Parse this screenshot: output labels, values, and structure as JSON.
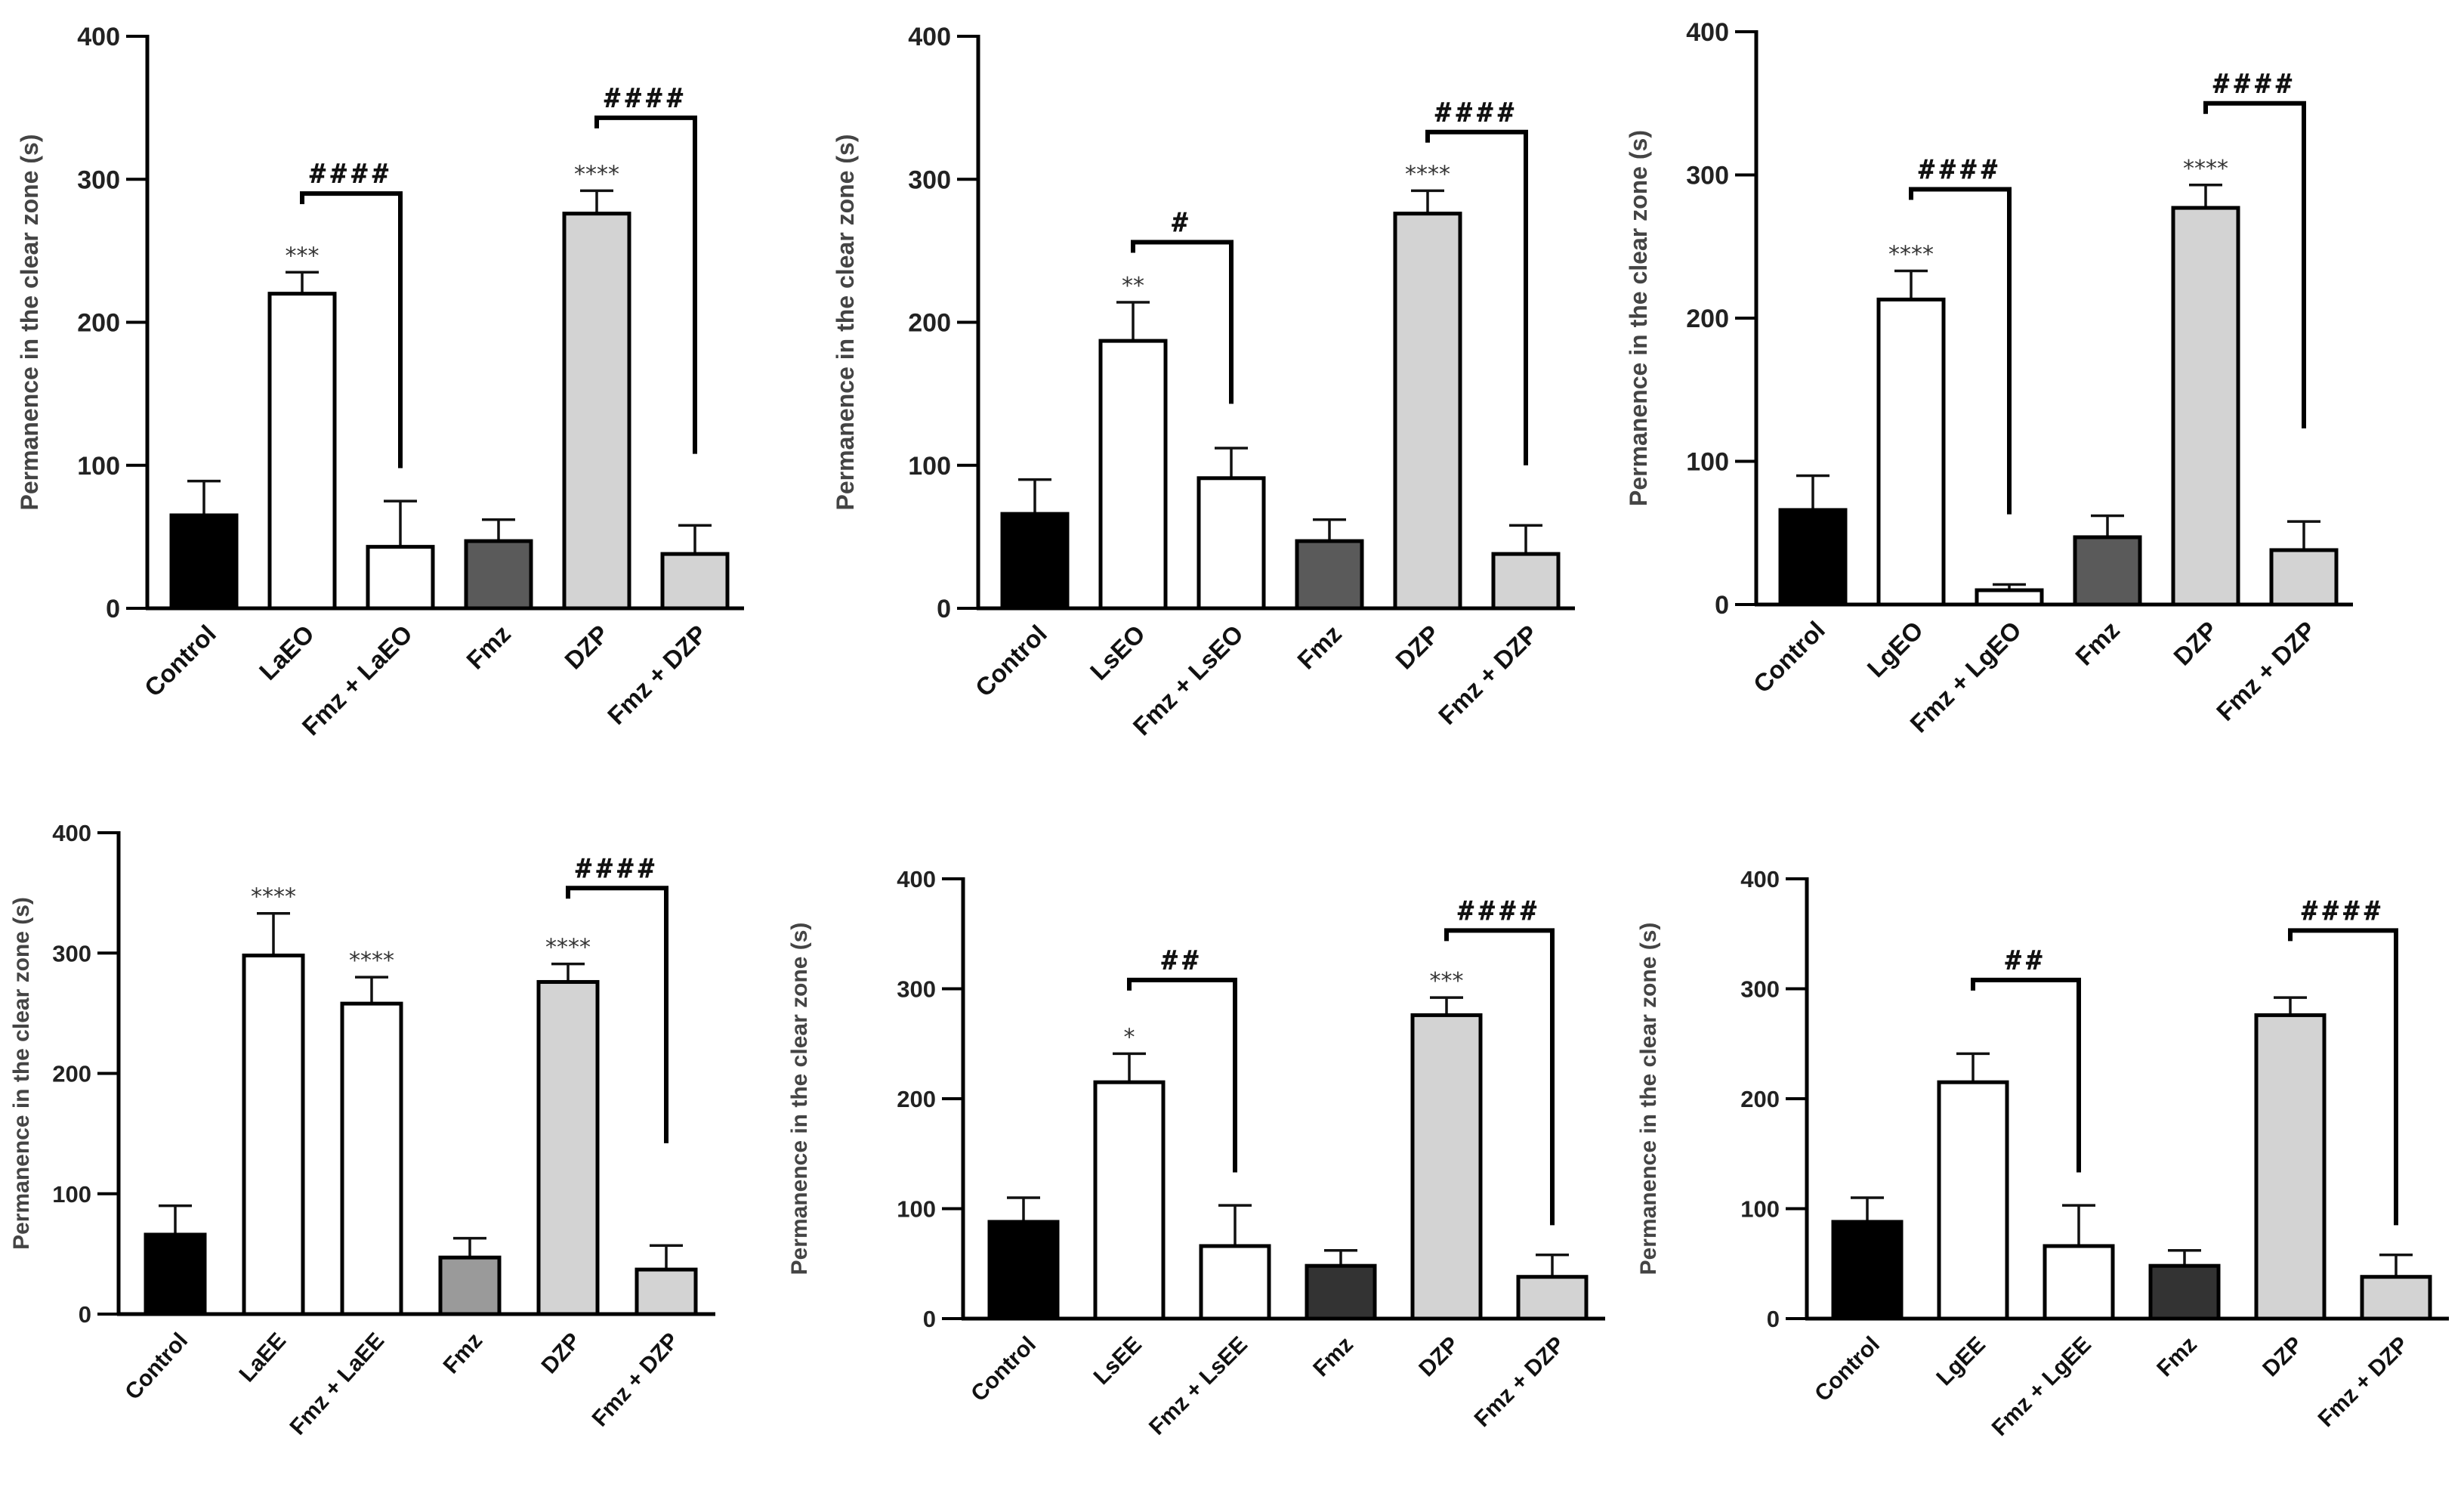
{
  "chart_data": [
    {
      "id": "p1",
      "type": "bar",
      "ylabel": "Permanence in the clear zone (s)",
      "ylim": [
        0,
        400
      ],
      "yticks": [
        "0",
        "100",
        "200",
        "300",
        "400"
      ],
      "categories": [
        "Control",
        "LaEO",
        "Fmz + LaEO",
        "Fmz",
        "DZP",
        "Fmz + DZP"
      ],
      "values": [
        65,
        220,
        43,
        47,
        276,
        38
      ],
      "errors": [
        24,
        15,
        32,
        15,
        16,
        20
      ],
      "fills": [
        "#000000",
        "#ffffff",
        "#ffffff",
        "#5a5a5a",
        "#d3d3d3",
        "#d3d3d3"
      ],
      "stars": [
        "",
        "***",
        "",
        "",
        "****",
        ""
      ],
      "comparisons": [
        {
          "from": 1,
          "to": 2,
          "y": 290,
          "end": 98,
          "label": "####"
        },
        {
          "from": 4,
          "to": 5,
          "y": 343,
          "end": 108,
          "label": "####"
        }
      ]
    },
    {
      "id": "p2",
      "type": "bar",
      "ylabel": "Permanence in the clear zone (s)",
      "ylim": [
        0,
        400
      ],
      "yticks": [
        "0",
        "100",
        "200",
        "300",
        "400"
      ],
      "categories": [
        "Control",
        "LsEO",
        "Fmz + LsEO",
        "Fmz",
        "DZP",
        "Fmz + DZP"
      ],
      "values": [
        66,
        187,
        91,
        47,
        276,
        38
      ],
      "errors": [
        24,
        27,
        21,
        15,
        16,
        20
      ],
      "fills": [
        "#000000",
        "#ffffff",
        "#ffffff",
        "#5a5a5a",
        "#d3d3d3",
        "#d3d3d3"
      ],
      "stars": [
        "",
        "**",
        "",
        "",
        "****",
        ""
      ],
      "comparisons": [
        {
          "from": 1,
          "to": 2,
          "y": 256,
          "end": 143,
          "label": "#"
        },
        {
          "from": 4,
          "to": 5,
          "y": 333,
          "end": 100,
          "label": "####"
        }
      ]
    },
    {
      "id": "p3",
      "type": "bar",
      "ylabel": "Permanence in the clear zone (s)",
      "ylim": [
        0,
        400
      ],
      "yticks": [
        "0",
        "100",
        "200",
        "300",
        "400"
      ],
      "categories": [
        "Control",
        "LgEO",
        "Fmz + LgEO",
        "Fmz",
        "DZP",
        "Fmz + DZP"
      ],
      "values": [
        66,
        213,
        10,
        47,
        277,
        38
      ],
      "errors": [
        24,
        20,
        4,
        15,
        16,
        20
      ],
      "fills": [
        "#000000",
        "#ffffff",
        "#ffffff",
        "#5a5a5a",
        "#d3d3d3",
        "#d3d3d3"
      ],
      "stars": [
        "",
        "****",
        "",
        "",
        "****",
        ""
      ],
      "comparisons": [
        {
          "from": 1,
          "to": 2,
          "y": 290,
          "end": 63,
          "label": "####"
        },
        {
          "from": 4,
          "to": 5,
          "y": 350,
          "end": 123,
          "label": "####"
        }
      ]
    },
    {
      "id": "p4",
      "type": "bar",
      "ylabel": "Permanence in the clear zone (s)",
      "ylim": [
        0,
        400
      ],
      "yticks": [
        "0",
        "100",
        "200",
        "300",
        "400"
      ],
      "categories": [
        "Control",
        "LaEE",
        "Fmz + LaEE",
        "Fmz",
        "DZP",
        "Fmz + DZP"
      ],
      "values": [
        66,
        298,
        258,
        47,
        276,
        37
      ],
      "errors": [
        24,
        35,
        22,
        16,
        15,
        20
      ],
      "fills": [
        "#000000",
        "#ffffff",
        "#ffffff",
        "#9a9a9a",
        "#d3d3d3",
        "#d3d3d3"
      ],
      "stars": [
        "",
        "****",
        "****",
        "",
        "****",
        ""
      ],
      "comparisons": [
        {
          "from": 4,
          "to": 5,
          "y": 354,
          "end": 142,
          "label": "####"
        }
      ]
    },
    {
      "id": "p5",
      "type": "bar",
      "ylabel": "Permanence in the clear zone (s)",
      "ylim": [
        0,
        400
      ],
      "yticks": [
        "0",
        "100",
        "200",
        "300",
        "400"
      ],
      "categories": [
        "Control",
        "LsEE",
        "Fmz + LsEE",
        "Fmz",
        "DZP",
        "Fmz + DZP"
      ],
      "values": [
        88,
        215,
        66,
        48,
        276,
        38
      ],
      "errors": [
        22,
        26,
        37,
        14,
        16,
        20
      ],
      "fills": [
        "#000000",
        "#ffffff",
        "#ffffff",
        "#333333",
        "#d3d3d3",
        "#d3d3d3"
      ],
      "stars": [
        "",
        "*",
        "",
        "",
        "***",
        ""
      ],
      "comparisons": [
        {
          "from": 1,
          "to": 2,
          "y": 308,
          "end": 133,
          "label": "##"
        },
        {
          "from": 4,
          "to": 5,
          "y": 353,
          "end": 85,
          "label": "####"
        }
      ]
    },
    {
      "id": "p6",
      "type": "bar",
      "ylabel": "Permanence in the clear zone (s)",
      "ylim": [
        0,
        400
      ],
      "yticks": [
        "0",
        "100",
        "200",
        "300",
        "400"
      ],
      "categories": [
        "Control",
        "LgEE",
        "Fmz + LgEE",
        "Fmz",
        "DZP",
        "Fmz + DZP"
      ],
      "values": [
        88,
        215,
        66,
        48,
        276,
        38
      ],
      "errors": [
        22,
        26,
        37,
        14,
        16,
        20
      ],
      "fills": [
        "#000000",
        "#ffffff",
        "#ffffff",
        "#333333",
        "#d3d3d3",
        "#d3d3d3"
      ],
      "stars": [
        "",
        "",
        "",
        "",
        "",
        ""
      ],
      "comparisons": [
        {
          "from": 1,
          "to": 2,
          "y": 308,
          "end": 133,
          "label": "##"
        },
        {
          "from": 4,
          "to": 5,
          "y": 353,
          "end": 85,
          "label": "####"
        }
      ]
    }
  ]
}
